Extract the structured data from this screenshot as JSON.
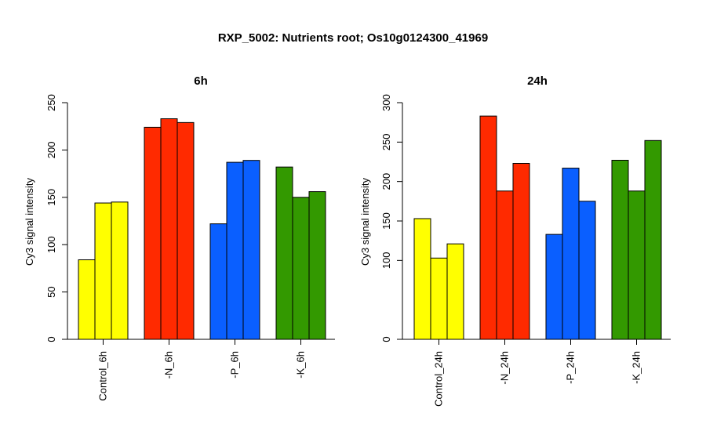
{
  "title": "RXP_5002: Nutrients root; Os10g0124300_41969",
  "colors": {
    "control": "#ffff00",
    "n": "#ff2a00",
    "p": "#0a5fff",
    "k": "#339900"
  },
  "chart_data": [
    {
      "type": "bar",
      "title": "6h",
      "ylabel": "Cy3 signal intensity",
      "ylim": [
        0,
        250
      ],
      "yticks": [
        0,
        50,
        100,
        150,
        200,
        250
      ],
      "categories": [
        "Control_6h",
        "-N_6h",
        "-P_6h",
        "-K_6h"
      ],
      "group_colors": [
        "#ffff00",
        "#ff2a00",
        "#0a5fff",
        "#339900"
      ],
      "values": [
        [
          84,
          144,
          145
        ],
        [
          224,
          233,
          229
        ],
        [
          122,
          187,
          189
        ],
        [
          182,
          150,
          156
        ]
      ]
    },
    {
      "type": "bar",
      "title": "24h",
      "ylabel": "Cy3 signal intensity",
      "ylim": [
        0,
        300
      ],
      "yticks": [
        0,
        100,
        150,
        200,
        250,
        300
      ],
      "categories": [
        "Control_24h",
        "-N_24h",
        "-P_24h",
        "-K_24h"
      ],
      "group_colors": [
        "#ffff00",
        "#ff2a00",
        "#0a5fff",
        "#339900"
      ],
      "values": [
        [
          153,
          103,
          121
        ],
        [
          283,
          188,
          223
        ],
        [
          133,
          217,
          175
        ],
        [
          227,
          188,
          252
        ]
      ]
    }
  ]
}
